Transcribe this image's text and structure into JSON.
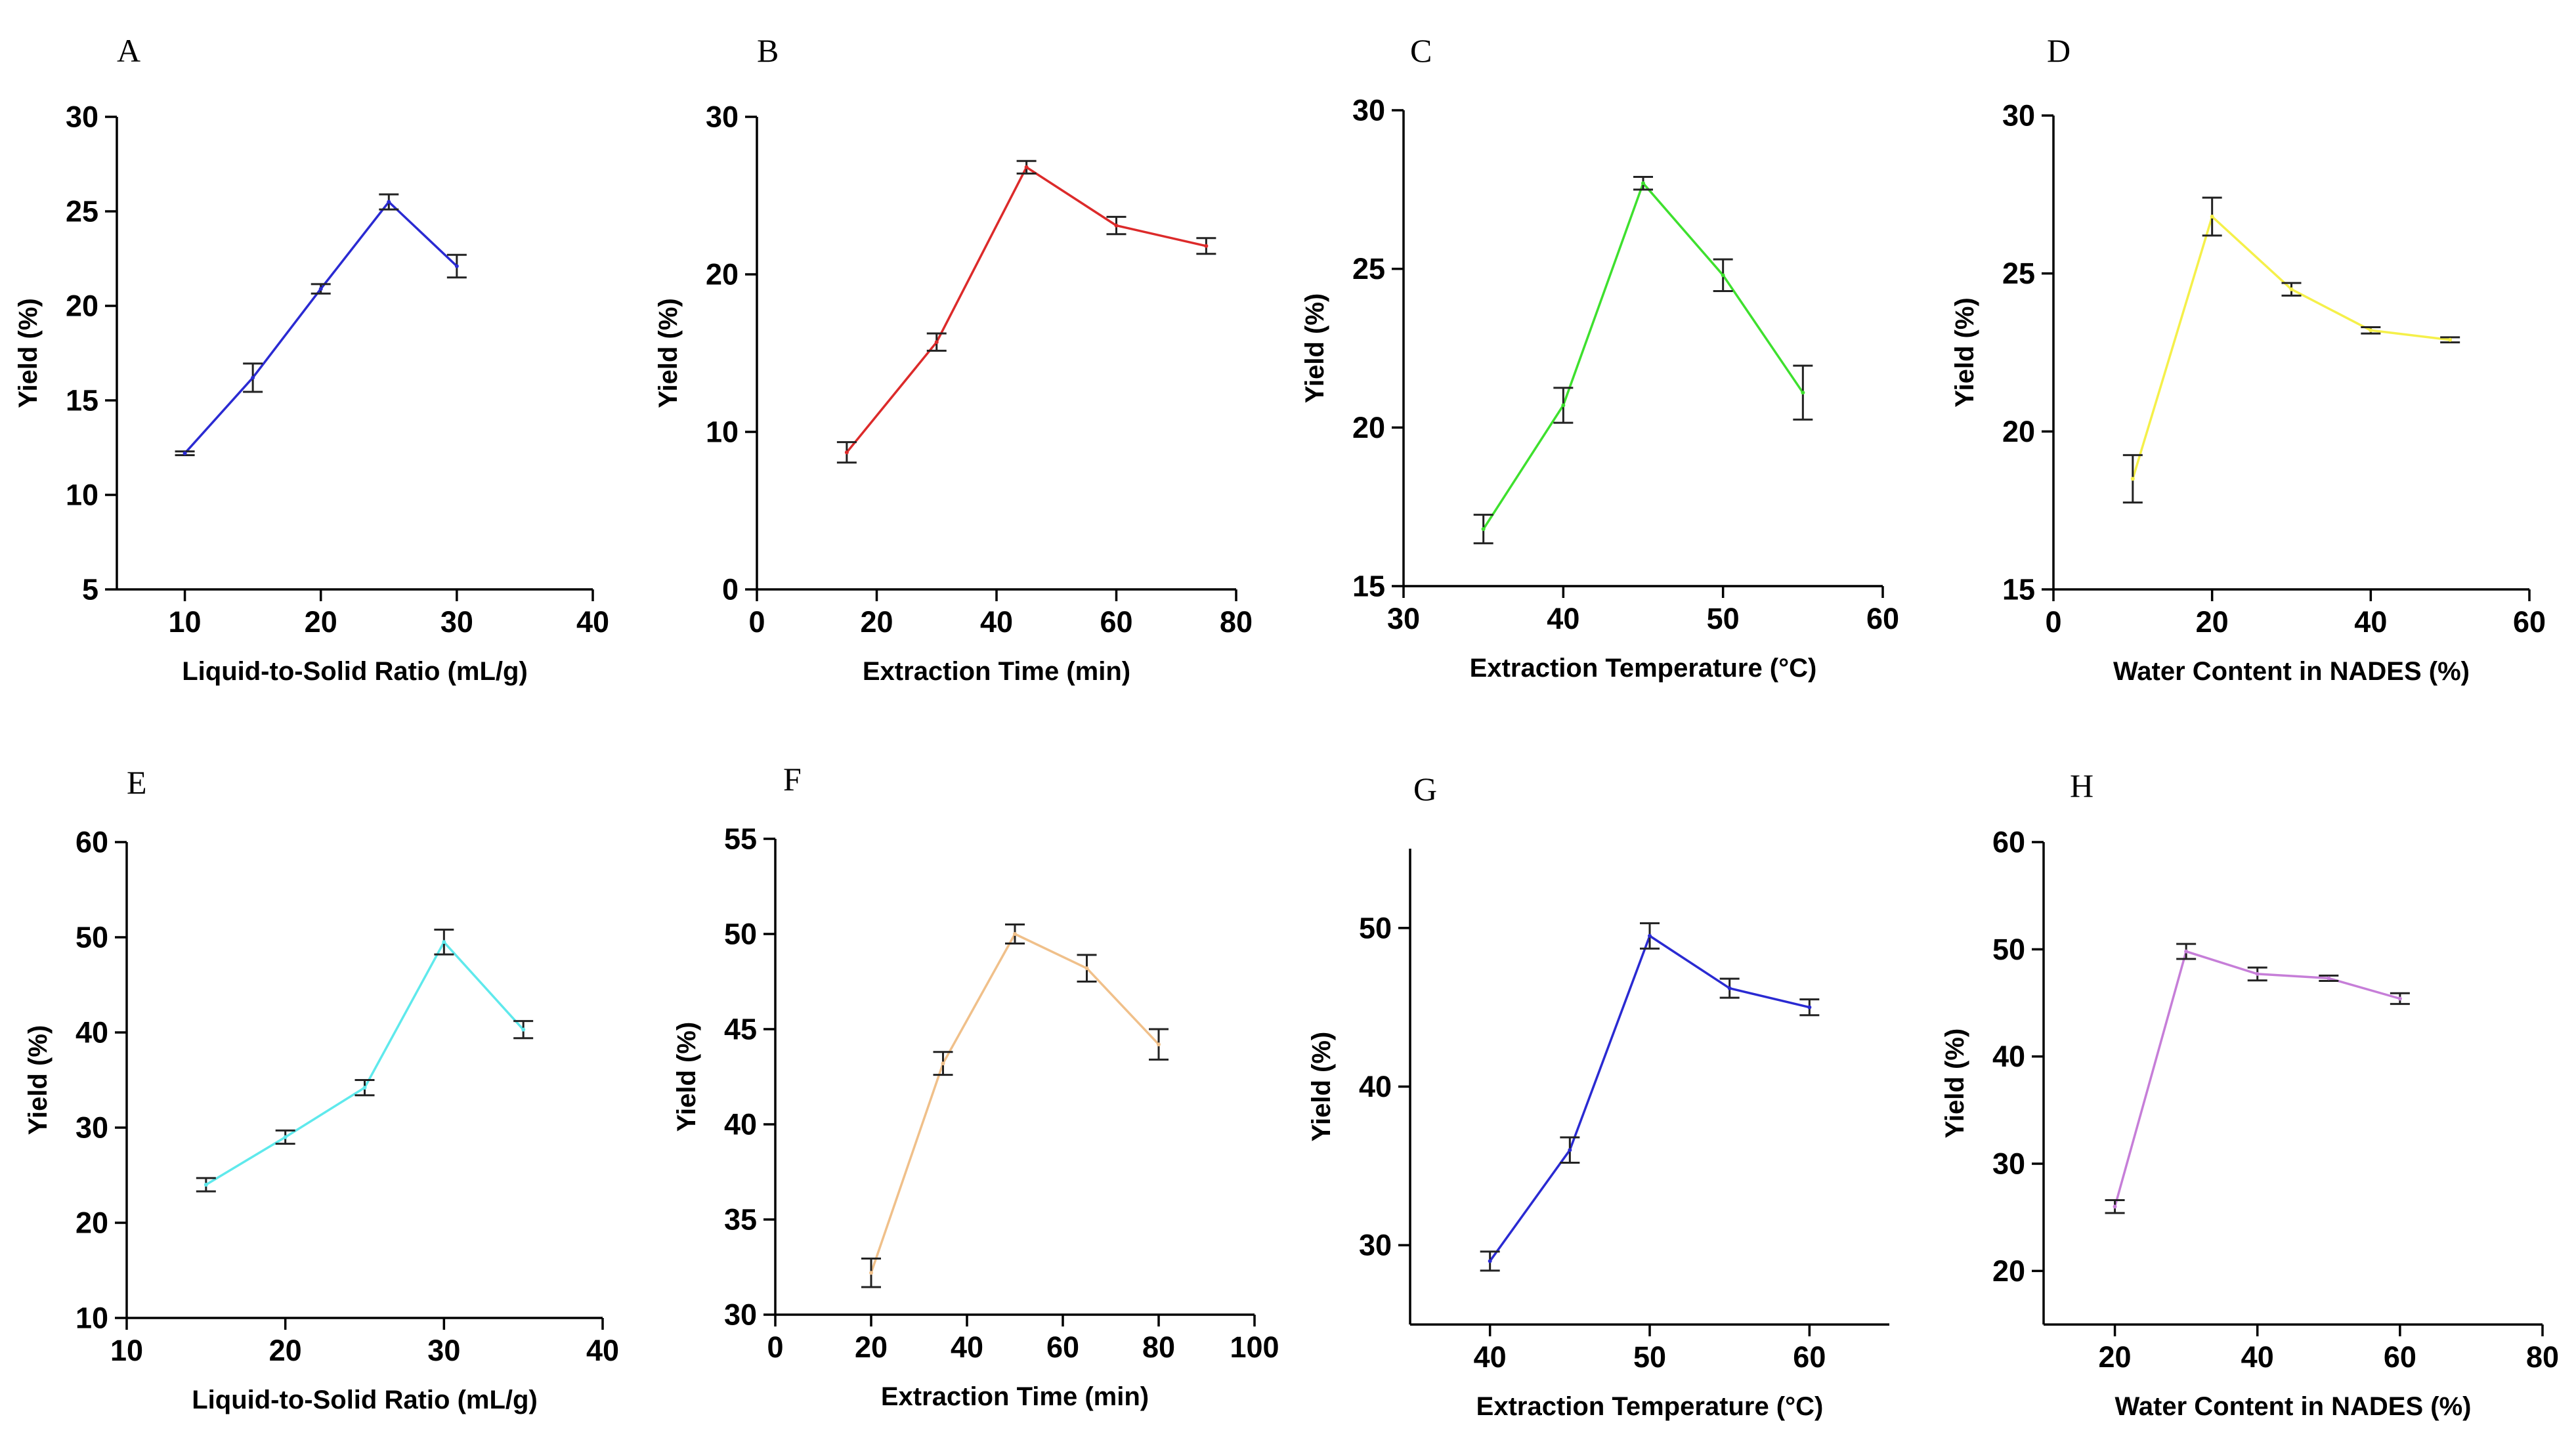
{
  "chart_data": [
    {
      "type": "line",
      "panel": "A",
      "xlabel": "Liquid-to-Solid Ratio (mL/g)",
      "ylabel": "Yield (%)",
      "xlim": [
        5,
        40
      ],
      "ylim": [
        5,
        30
      ],
      "xticks": [
        10,
        20,
        30,
        40
      ],
      "yticks": [
        5,
        10,
        15,
        20,
        25,
        30
      ],
      "color": "#2a2ad2",
      "x": [
        10,
        15,
        20,
        25,
        30
      ],
      "values": [
        12.2,
        16.2,
        20.9,
        25.5,
        22.1
      ],
      "errors": [
        0.1,
        0.75,
        0.25,
        0.4,
        0.6
      ]
    },
    {
      "type": "line",
      "panel": "B",
      "xlabel": "Extraction Time (min)",
      "ylabel": "Yield (%)",
      "xlim": [
        0,
        80
      ],
      "ylim": [
        0,
        30
      ],
      "xticks": [
        0,
        20,
        40,
        60,
        80
      ],
      "yticks": [
        0,
        10,
        20,
        30
      ],
      "color": "#dc2a2a",
      "x": [
        15,
        30,
        45,
        60,
        75
      ],
      "values": [
        8.7,
        15.7,
        26.8,
        23.1,
        21.8
      ],
      "errors": [
        0.65,
        0.55,
        0.4,
        0.55,
        0.5
      ]
    },
    {
      "type": "line",
      "panel": "C",
      "xlabel": "Extraction Temperature (°C)",
      "ylabel": "Yield (%)",
      "xlim": [
        30,
        60
      ],
      "ylim": [
        15,
        30
      ],
      "xticks": [
        30,
        40,
        50,
        60
      ],
      "yticks": [
        15,
        20,
        25,
        30
      ],
      "color": "#3ee02e",
      "x": [
        35,
        40,
        45,
        50,
        55
      ],
      "values": [
        16.8,
        20.7,
        27.7,
        24.8,
        21.1
      ],
      "errors": [
        0.45,
        0.55,
        0.2,
        0.5,
        0.85
      ]
    },
    {
      "type": "line",
      "panel": "D",
      "xlabel": "Water Content in NADES (%)",
      "ylabel": "Yield (%)",
      "xlim": [
        0,
        60
      ],
      "ylim": [
        15,
        30
      ],
      "xticks": [
        0,
        20,
        40,
        60
      ],
      "yticks": [
        15,
        20,
        25,
        30
      ],
      "color": "#f5f04a",
      "x": [
        10,
        20,
        30,
        40,
        50
      ],
      "values": [
        18.5,
        26.8,
        24.5,
        23.2,
        22.9
      ],
      "errors": [
        0.75,
        0.6,
        0.2,
        0.1,
        0.08
      ]
    },
    {
      "type": "line",
      "panel": "E",
      "xlabel": "Liquid-to-Solid Ratio (mL/g)",
      "ylabel": "Yield (%)",
      "xlim": [
        10,
        40
      ],
      "ylim": [
        10,
        60
      ],
      "xticks": [
        10,
        20,
        30,
        40
      ],
      "yticks": [
        10,
        20,
        30,
        40,
        50,
        60
      ],
      "color": "#5fe9ec",
      "x": [
        15,
        20,
        25,
        30,
        35
      ],
      "values": [
        24.0,
        29.0,
        34.2,
        49.5,
        40.3
      ],
      "errors": [
        0.7,
        0.7,
        0.8,
        1.3,
        0.9
      ]
    },
    {
      "type": "line",
      "panel": "F",
      "xlabel": "Extraction Time (min)",
      "ylabel": "Yield (%)",
      "xlim": [
        0,
        100
      ],
      "ylim": [
        30,
        55
      ],
      "xticks": [
        0,
        20,
        40,
        60,
        80,
        100
      ],
      "yticks": [
        30,
        35,
        40,
        45,
        50,
        55
      ],
      "color": "#f0c08a",
      "x": [
        20,
        35,
        50,
        65,
        80
      ],
      "values": [
        32.2,
        43.2,
        50.0,
        48.2,
        44.2
      ],
      "errors": [
        0.75,
        0.6,
        0.5,
        0.7,
        0.8
      ]
    },
    {
      "type": "line",
      "panel": "G",
      "xlabel": "Extraction Temperature (°C)",
      "ylabel": "Yield (%)",
      "xlim": [
        35,
        65
      ],
      "ylim": [
        25,
        55
      ],
      "xticks": [
        40,
        50,
        60
      ],
      "yticks": [
        30,
        40,
        50
      ],
      "color": "#2a2ad2",
      "x": [
        40,
        45,
        50,
        55,
        60
      ],
      "values": [
        29.0,
        36.0,
        49.5,
        46.2,
        45.0
      ],
      "errors": [
        0.6,
        0.8,
        0.8,
        0.6,
        0.5
      ]
    },
    {
      "type": "line",
      "panel": "H",
      "xlabel": "Water Content in NADES (%)",
      "ylabel": "Yield (%)",
      "xlim": [
        10,
        80
      ],
      "ylim": [
        15,
        60
      ],
      "xticks": [
        20,
        40,
        60,
        80
      ],
      "yticks": [
        20,
        30,
        40,
        50,
        60
      ],
      "color": "#c67ed8",
      "x": [
        20,
        30,
        40,
        50,
        60
      ],
      "values": [
        26.0,
        49.8,
        47.7,
        47.3,
        45.4
      ],
      "errors": [
        0.6,
        0.7,
        0.6,
        0.25,
        0.5
      ]
    }
  ]
}
